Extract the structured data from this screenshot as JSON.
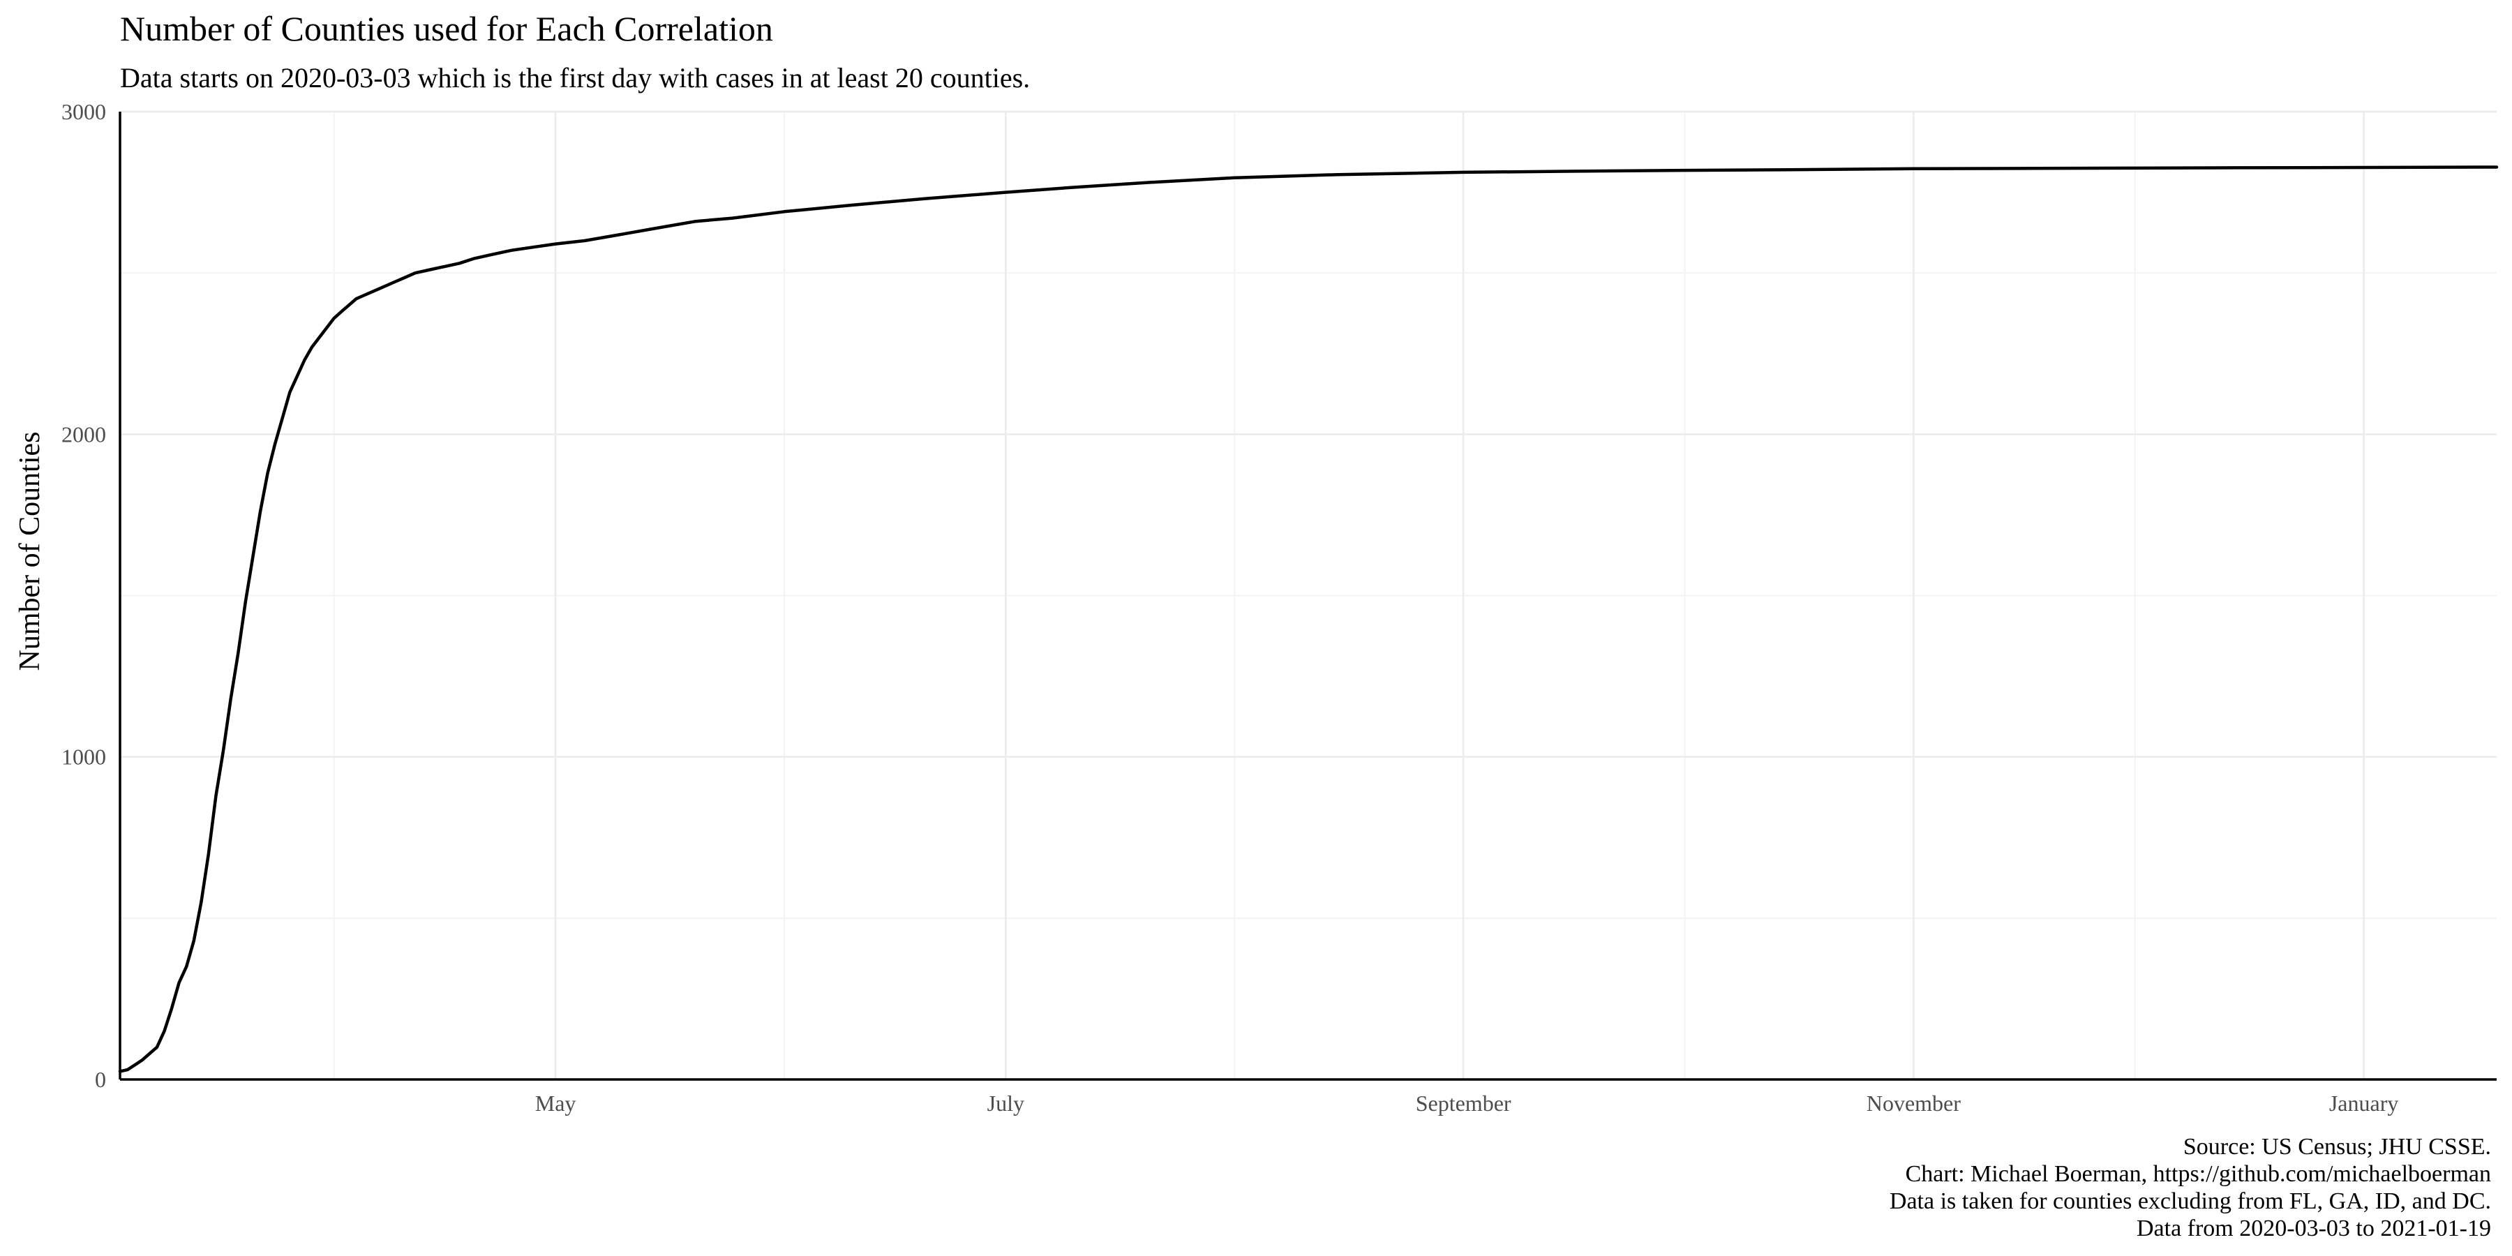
{
  "chart_data": {
    "type": "line",
    "title": "Number of Counties used for Each Correlation",
    "subtitle": "Data starts on 2020-03-03 which is the first day with cases in at least 20 counties.",
    "xlabel": "",
    "ylabel": "Number of Counties",
    "xlim": [
      "2020-03-03",
      "2021-01-19"
    ],
    "ylim": [
      0,
      3000
    ],
    "x_ticks": [
      {
        "date": "2020-05-01",
        "label": "May"
      },
      {
        "date": "2020-07-01",
        "label": "July"
      },
      {
        "date": "2020-09-01",
        "label": "September"
      },
      {
        "date": "2020-11-01",
        "label": "November"
      },
      {
        "date": "2021-01-01",
        "label": "January"
      }
    ],
    "x_minor_ticks": [
      "2020-04-01",
      "2020-06-01",
      "2020-08-01",
      "2020-10-01",
      "2020-12-01"
    ],
    "y_ticks": [
      0,
      1000,
      2000,
      3000
    ],
    "y_minor_ticks": [
      500,
      1500,
      2500
    ],
    "grid": true,
    "legend": "none",
    "colors": {
      "line": "#000000",
      "grid": "#ebebeb",
      "axis": "#000000",
      "tick_label": "#4d4d4d"
    },
    "series": [
      {
        "x": [
          "2020-03-03",
          "2020-03-04",
          "2020-03-05",
          "2020-03-06",
          "2020-03-07",
          "2020-03-08",
          "2020-03-09",
          "2020-03-10",
          "2020-03-11",
          "2020-03-12",
          "2020-03-13",
          "2020-03-14",
          "2020-03-15",
          "2020-03-16",
          "2020-03-17",
          "2020-03-18",
          "2020-03-19",
          "2020-03-20",
          "2020-03-21",
          "2020-03-22",
          "2020-03-23",
          "2020-03-24",
          "2020-03-25",
          "2020-03-26",
          "2020-03-27",
          "2020-03-28",
          "2020-03-29",
          "2020-03-30",
          "2020-03-31",
          "2020-04-01",
          "2020-04-02",
          "2020-04-03",
          "2020-04-04",
          "2020-04-05",
          "2020-04-06",
          "2020-04-07",
          "2020-04-08",
          "2020-04-09",
          "2020-04-10",
          "2020-04-12",
          "2020-04-14",
          "2020-04-16",
          "2020-04-18",
          "2020-04-20",
          "2020-04-22",
          "2020-04-25",
          "2020-04-28",
          "2020-05-01",
          "2020-05-05",
          "2020-05-10",
          "2020-05-15",
          "2020-05-20",
          "2020-05-25",
          "2020-06-01",
          "2020-06-10",
          "2020-06-20",
          "2020-07-01",
          "2020-07-10",
          "2020-07-20",
          "2020-08-01",
          "2020-08-15",
          "2020-09-01",
          "2020-09-15",
          "2020-10-01",
          "2020-10-15",
          "2020-11-01",
          "2020-11-15",
          "2020-12-01",
          "2020-12-15",
          "2021-01-01",
          "2021-01-19"
        ],
        "y": [
          25,
          30,
          45,
          60,
          80,
          100,
          150,
          220,
          300,
          350,
          430,
          550,
          700,
          880,
          1020,
          1180,
          1320,
          1480,
          1620,
          1760,
          1880,
          1970,
          2050,
          2130,
          2180,
          2230,
          2270,
          2300,
          2330,
          2360,
          2380,
          2400,
          2420,
          2430,
          2440,
          2450,
          2460,
          2470,
          2480,
          2500,
          2510,
          2520,
          2530,
          2545,
          2555,
          2570,
          2580,
          2590,
          2600,
          2620,
          2640,
          2660,
          2670,
          2690,
          2710,
          2730,
          2750,
          2765,
          2780,
          2795,
          2805,
          2812,
          2815,
          2818,
          2820,
          2823,
          2824,
          2825,
          2826,
          2827,
          2828
        ]
      }
    ]
  },
  "caption": {
    "line1": "Source: US Census; JHU CSSE.",
    "line2": "Chart: Michael Boerman, https://github.com/michaelboerman",
    "line3": "Data is taken for counties excluding from FL, GA, ID, and DC.",
    "line4": "Data from 2020-03-03 to 2021-01-19"
  }
}
